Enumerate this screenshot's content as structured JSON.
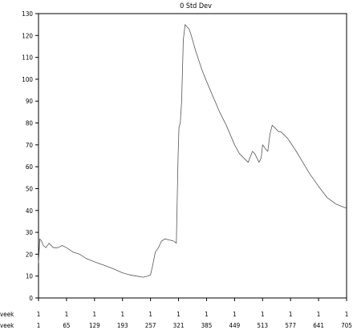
{
  "chart_data": {
    "type": "line",
    "title": "0 Std Dev",
    "xlabel": "",
    "ylabel": "",
    "xlim": [
      1,
      705
    ],
    "ylim": [
      0,
      130
    ],
    "grid": false,
    "yticks": [
      0,
      10,
      20,
      30,
      40,
      50,
      60,
      70,
      80,
      90,
      100,
      110,
      120,
      130
    ],
    "xtick_rows": [
      {
        "label": "veek",
        "ticks": [
          "1",
          "1",
          "1",
          "1",
          "1",
          "1",
          "1",
          "1",
          "1",
          "1",
          "1",
          "1"
        ]
      },
      {
        "label": "veek",
        "ticks": [
          "1",
          "65",
          "129",
          "193",
          "257",
          "321",
          "385",
          "449",
          "513",
          "577",
          "641",
          "705"
        ]
      }
    ],
    "series": [
      {
        "x": [
          1,
          4,
          8,
          12,
          18,
          25,
          35,
          45,
          55,
          65,
          80,
          95,
          110,
          129,
          150,
          170,
          193,
          210,
          225,
          240,
          250,
          257,
          262,
          268,
          275,
          282,
          290,
          300,
          310,
          316,
          318,
          320,
          322,
          325,
          328,
          332,
          336,
          340,
          345,
          350,
          360,
          375,
          385,
          400,
          415,
          430,
          449,
          460,
          470,
          480,
          490,
          495,
          500,
          505,
          510,
          513,
          517,
          520,
          525,
          530,
          535,
          540,
          545,
          550,
          555,
          560,
          565,
          570,
          577,
          590,
          605,
          620,
          641,
          660,
          680,
          705
        ],
        "y": [
          16,
          27,
          26,
          24,
          23,
          25,
          23,
          23,
          24,
          23,
          21,
          20,
          18,
          16.5,
          15,
          13.5,
          11.5,
          10.5,
          10,
          9.5,
          10,
          10.5,
          15,
          21,
          23,
          26,
          27,
          26.5,
          26,
          25,
          45,
          65,
          78,
          80,
          90,
          118,
          125,
          124,
          123,
          120,
          113,
          104,
          99,
          92,
          85,
          79,
          70,
          66,
          64,
          62,
          67,
          66,
          64,
          62,
          64,
          70,
          69,
          68,
          67,
          75,
          79,
          78,
          77,
          76,
          76,
          75,
          74,
          73,
          71,
          67,
          62,
          57,
          51,
          46,
          43,
          41
        ]
      }
    ]
  }
}
